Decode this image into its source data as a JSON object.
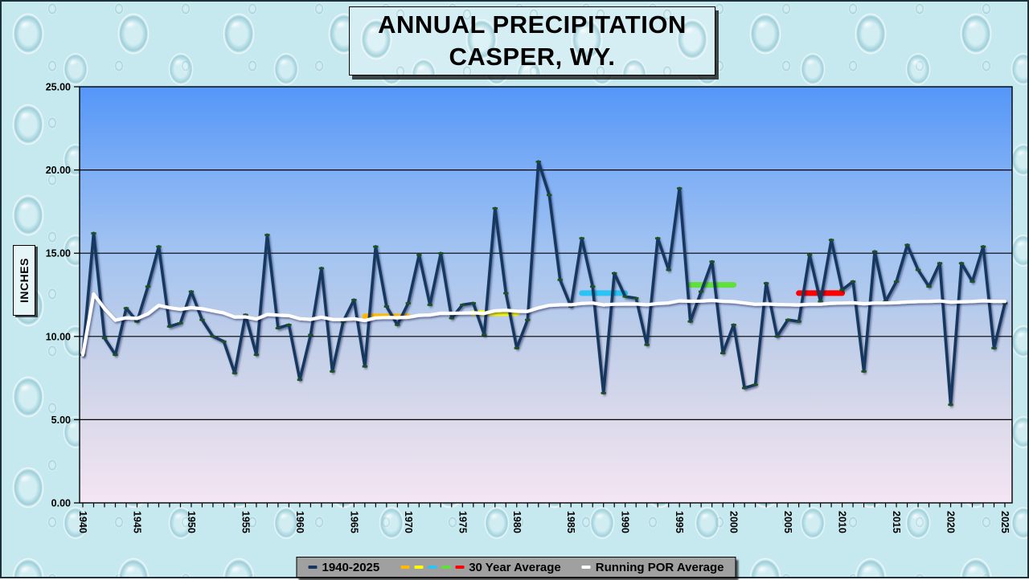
{
  "title": {
    "line1": "ANNUAL PRECIPITATION",
    "line2": "CASPER, WY."
  },
  "y_axis": {
    "label": "INCHES",
    "min": 0,
    "max": 25,
    "step": 5,
    "tick_labels": [
      "0.00",
      "5.00",
      "10.00",
      "15.00",
      "20.00",
      "25.00"
    ]
  },
  "x_axis": {
    "start_year": 1940,
    "end_year": 2025,
    "tick_label_years": [
      1940,
      1945,
      1950,
      1955,
      1960,
      1965,
      1970,
      1975,
      1980,
      1985,
      1990,
      1995,
      2000,
      2005,
      2010,
      2015,
      2020,
      2025
    ]
  },
  "legend": {
    "items": [
      {
        "label": "1940-2025",
        "dash_colors": [
          "#17375E"
        ]
      },
      {
        "label": "30 Year Average",
        "dash_colors": [
          "#FFB900",
          "#FFFF00",
          "#29C3F4",
          "#5FE03A",
          "#FF0000"
        ]
      },
      {
        "label": "Running POR Average",
        "dash_colors": [
          "#FFFFFF"
        ]
      }
    ]
  },
  "colors": {
    "annual_line": "#17375E",
    "marker": "#1E5222",
    "running_avg_line": "#FFFFFF",
    "plot_gradient": [
      "#5496F8",
      "#7DAEF5",
      "#A3C4F1",
      "#BFCEE9",
      "#DBDAEA",
      "#F4E5F3"
    ],
    "grid": "#000000"
  },
  "chart_data": {
    "type": "line",
    "title": "ANNUAL PRECIPITATION CASPER, WY.",
    "ylabel": "INCHES",
    "ylim": [
      0,
      25
    ],
    "grid": "horizontal, every 5 inches",
    "legend_position": "bottom",
    "x": [
      1940,
      1941,
      1942,
      1943,
      1944,
      1945,
      1946,
      1947,
      1948,
      1949,
      1950,
      1951,
      1952,
      1953,
      1954,
      1955,
      1956,
      1957,
      1958,
      1959,
      1960,
      1961,
      1962,
      1963,
      1964,
      1965,
      1966,
      1967,
      1968,
      1969,
      1970,
      1971,
      1972,
      1973,
      1974,
      1975,
      1976,
      1977,
      1978,
      1979,
      1980,
      1981,
      1982,
      1983,
      1984,
      1985,
      1986,
      1987,
      1988,
      1989,
      1990,
      1991,
      1992,
      1993,
      1994,
      1995,
      1996,
      1997,
      1998,
      1999,
      2000,
      2001,
      2002,
      2003,
      2004,
      2005,
      2006,
      2007,
      2008,
      2009,
      2010,
      2011,
      2012,
      2013,
      2014,
      2015,
      2016,
      2017,
      2018,
      2019,
      2020,
      2021,
      2022,
      2023,
      2024,
      2025
    ],
    "series": [
      {
        "name": "1940-2025",
        "kind": "annual precipitation (inches)",
        "values": [
          8.9,
          16.2,
          9.9,
          8.9,
          11.7,
          10.9,
          13.0,
          15.4,
          10.6,
          10.8,
          12.7,
          11.0,
          10.0,
          9.7,
          7.8,
          11.3,
          8.9,
          16.1,
          10.5,
          10.7,
          7.4,
          10.1,
          14.1,
          7.9,
          10.9,
          12.2,
          8.2,
          15.4,
          11.8,
          10.7,
          12.0,
          14.9,
          11.9,
          15.0,
          11.1,
          11.9,
          12.0,
          10.1,
          17.7,
          12.6,
          9.3,
          11.0,
          20.5,
          18.5,
          13.4,
          11.8,
          15.9,
          13.0,
          6.6,
          13.8,
          12.4,
          12.3,
          9.5,
          15.9,
          14.0,
          18.9,
          10.9,
          12.7,
          14.5,
          9.0,
          10.7,
          6.9,
          7.1,
          13.2,
          10.0,
          11.0,
          10.9,
          14.9,
          12.1,
          15.8,
          12.8,
          13.3,
          7.9,
          15.1,
          12.1,
          13.3,
          15.5,
          14.0,
          13.0,
          14.4,
          5.9,
          14.4,
          13.3,
          15.4,
          9.3,
          12.0
        ]
      },
      {
        "name": "Running POR Average",
        "kind": "cumulative mean of annual values, computed from series 0"
      }
    ],
    "thirty_year_average_segments": [
      {
        "plotted_from": 1966,
        "plotted_to": 1970,
        "value": 11.2,
        "color": "#FFB900"
      },
      {
        "plotted_from": 1976,
        "plotted_to": 1980,
        "value": 11.4,
        "color": "#FFFF00"
      },
      {
        "plotted_from": 1986,
        "plotted_to": 1990,
        "value": 12.6,
        "color": "#29C3F4"
      },
      {
        "plotted_from": 1996,
        "plotted_to": 2000,
        "value": 13.1,
        "color": "#5FE03A"
      },
      {
        "plotted_from": 2006,
        "plotted_to": 2010,
        "value": 12.6,
        "color": "#FF0000"
      }
    ]
  }
}
